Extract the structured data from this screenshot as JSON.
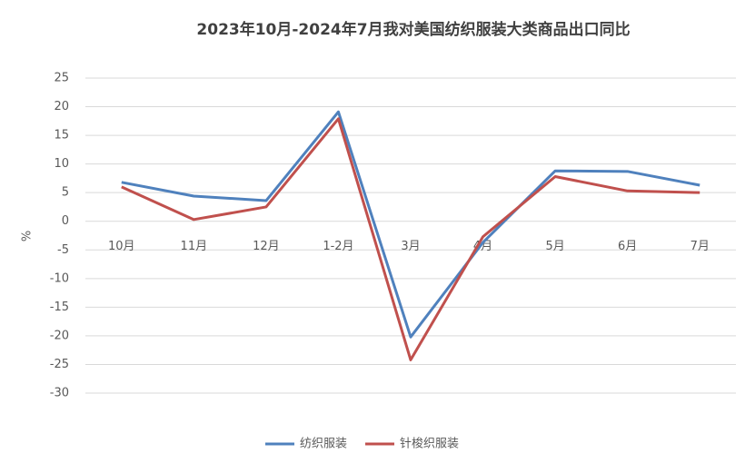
{
  "chart_data": {
    "type": "line",
    "title": "2023年10月-2024年7月我对美国纺织服装大类商品出口同比",
    "y_label": "%",
    "categories": [
      "10月",
      "11月",
      "12月",
      "1-2月",
      "3月",
      "4月",
      "5月",
      "6月",
      "7月"
    ],
    "series": [
      {
        "name": "纺织服装",
        "color": "#4f81bd",
        "values": [
          6.8,
          4.4,
          3.6,
          19.1,
          -20.2,
          -3.7,
          8.8,
          8.7,
          6.3
        ]
      },
      {
        "name": "针梭织服装",
        "color": "#c0504d",
        "values": [
          6.0,
          0.3,
          2.5,
          17.9,
          -24.2,
          -2.7,
          7.8,
          5.3,
          5.0
        ]
      }
    ],
    "ylim": [
      -30,
      25
    ],
    "yticks": [
      -30,
      -25,
      -20,
      -15,
      -10,
      -5,
      0,
      5,
      10,
      15,
      20,
      25
    ],
    "grid": true,
    "legend": "bottom"
  }
}
